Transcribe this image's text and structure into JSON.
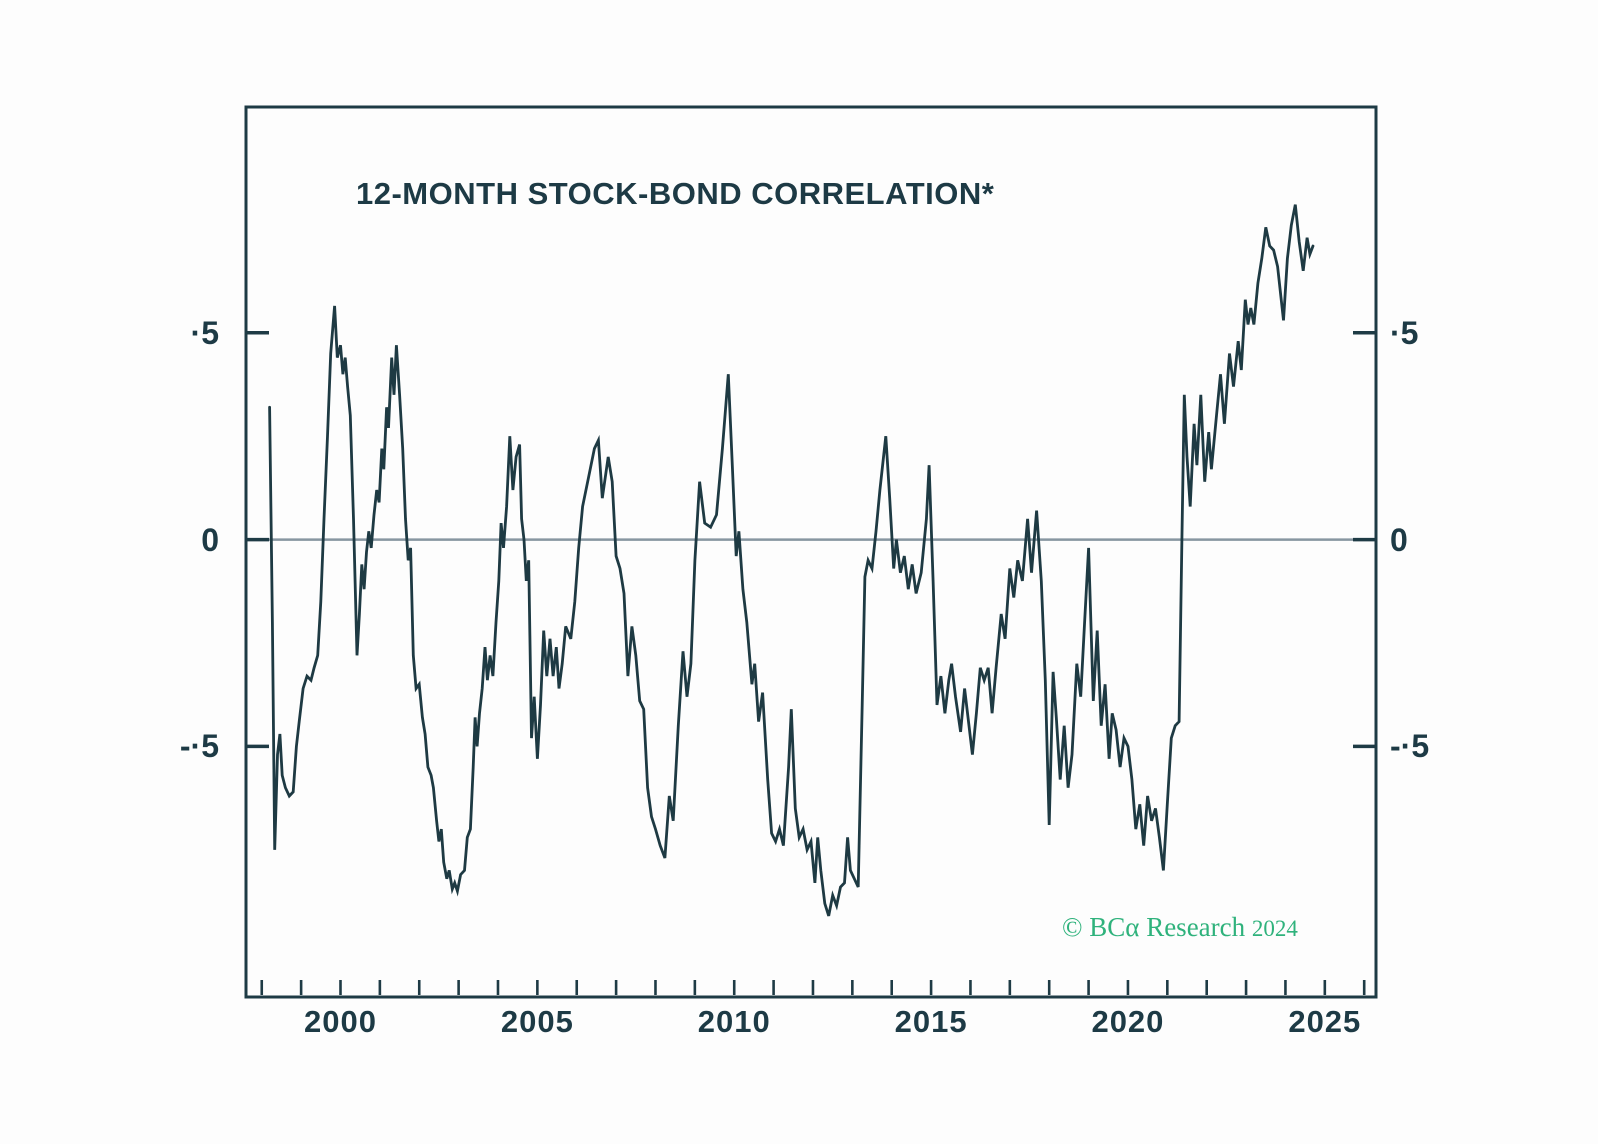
{
  "page": {
    "background": "#fdfdfd"
  },
  "colors": {
    "frame": "#1e3b45",
    "text": "#1d3a45",
    "line": "#1e3a43",
    "zero_line": "#8796a1",
    "watermark": "#2fb27c",
    "background": "#fdfdfd"
  },
  "watermark": {
    "symbol": "©",
    "brand": "BCα",
    "name": "Research",
    "year": "2024"
  },
  "chart_data": {
    "type": "line",
    "title": "12-MONTH STOCK-BOND CORRELATION*",
    "xlabel": "",
    "ylabel": "",
    "legend": "none",
    "grid": "zero-line-only",
    "x_axis": {
      "min": 1997.6,
      "max": 2026.3,
      "minor_tick_interval": 1,
      "minor_tick_start": 1998,
      "minor_tick_end": 2026,
      "labels": [
        {
          "year": 2000,
          "text": "2000"
        },
        {
          "year": 2005,
          "text": "2005"
        },
        {
          "year": 2010,
          "text": "2010"
        },
        {
          "year": 2015,
          "text": "2015"
        },
        {
          "year": 2020,
          "text": "2020"
        },
        {
          "year": 2025,
          "text": "2025"
        }
      ]
    },
    "y_axis": {
      "min": -1.106,
      "max": 1.046,
      "ticks": [
        {
          "value": 0.5,
          "label": "·5"
        },
        {
          "value": 0,
          "label": "0"
        },
        {
          "value": -0.5,
          "label": "-·5"
        }
      ],
      "zero_line_value": 0
    },
    "series": [
      {
        "name": "12-month stock-bond correlation",
        "color": "#1e3a43",
        "stroke_width": 2.8,
        "points": [
          [
            1998.2,
            0.32
          ],
          [
            1998.27,
            -0.2
          ],
          [
            1998.33,
            -0.75
          ],
          [
            1998.4,
            -0.52
          ],
          [
            1998.46,
            -0.47
          ],
          [
            1998.52,
            -0.57
          ],
          [
            1998.6,
            -0.6
          ],
          [
            1998.7,
            -0.62
          ],
          [
            1998.8,
            -0.61
          ],
          [
            1998.88,
            -0.5
          ],
          [
            1998.95,
            -0.44
          ],
          [
            1999.05,
            -0.36
          ],
          [
            1999.15,
            -0.33
          ],
          [
            1999.25,
            -0.34
          ],
          [
            1999.33,
            -0.31
          ],
          [
            1999.42,
            -0.28
          ],
          [
            1999.5,
            -0.15
          ],
          [
            1999.58,
            0.05
          ],
          [
            1999.67,
            0.25
          ],
          [
            1999.75,
            0.45
          ],
          [
            1999.85,
            0.565
          ],
          [
            1999.92,
            0.44
          ],
          [
            2000.0,
            0.47
          ],
          [
            2000.06,
            0.4
          ],
          [
            2000.12,
            0.44
          ],
          [
            2000.18,
            0.37
          ],
          [
            2000.25,
            0.3
          ],
          [
            2000.33,
            0.05
          ],
          [
            2000.42,
            -0.28
          ],
          [
            2000.48,
            -0.18
          ],
          [
            2000.54,
            -0.06
          ],
          [
            2000.6,
            -0.12
          ],
          [
            2000.66,
            -0.03
          ],
          [
            2000.72,
            0.02
          ],
          [
            2000.78,
            -0.02
          ],
          [
            2000.85,
            0.06
          ],
          [
            2000.92,
            0.12
          ],
          [
            2000.98,
            0.09
          ],
          [
            2001.05,
            0.22
          ],
          [
            2001.1,
            0.17
          ],
          [
            2001.17,
            0.32
          ],
          [
            2001.22,
            0.27
          ],
          [
            2001.3,
            0.44
          ],
          [
            2001.36,
            0.35
          ],
          [
            2001.42,
            0.47
          ],
          [
            2001.5,
            0.35
          ],
          [
            2001.58,
            0.22
          ],
          [
            2001.65,
            0.05
          ],
          [
            2001.72,
            -0.05
          ],
          [
            2001.78,
            -0.02
          ],
          [
            2001.85,
            -0.28
          ],
          [
            2001.92,
            -0.36
          ],
          [
            2002.0,
            -0.35
          ],
          [
            2002.08,
            -0.43
          ],
          [
            2002.15,
            -0.47
          ],
          [
            2002.22,
            -0.55
          ],
          [
            2002.3,
            -0.57
          ],
          [
            2002.36,
            -0.6
          ],
          [
            2002.44,
            -0.68
          ],
          [
            2002.5,
            -0.73
          ],
          [
            2002.56,
            -0.7
          ],
          [
            2002.62,
            -0.78
          ],
          [
            2002.7,
            -0.82
          ],
          [
            2002.76,
            -0.8
          ],
          [
            2002.84,
            -0.845
          ],
          [
            2002.9,
            -0.83
          ],
          [
            2002.97,
            -0.85
          ],
          [
            2003.05,
            -0.81
          ],
          [
            2003.15,
            -0.8
          ],
          [
            2003.22,
            -0.72
          ],
          [
            2003.3,
            -0.7
          ],
          [
            2003.37,
            -0.55
          ],
          [
            2003.42,
            -0.43
          ],
          [
            2003.47,
            -0.5
          ],
          [
            2003.53,
            -0.42
          ],
          [
            2003.6,
            -0.36
          ],
          [
            2003.67,
            -0.26
          ],
          [
            2003.73,
            -0.34
          ],
          [
            2003.8,
            -0.28
          ],
          [
            2003.87,
            -0.33
          ],
          [
            2003.95,
            -0.2
          ],
          [
            2004.02,
            -0.1
          ],
          [
            2004.08,
            0.04
          ],
          [
            2004.14,
            -0.02
          ],
          [
            2004.22,
            0.08
          ],
          [
            2004.3,
            0.25
          ],
          [
            2004.38,
            0.12
          ],
          [
            2004.46,
            0.2
          ],
          [
            2004.55,
            0.23
          ],
          [
            2004.6,
            0.05
          ],
          [
            2004.66,
            0.0
          ],
          [
            2004.72,
            -0.1
          ],
          [
            2004.78,
            -0.05
          ],
          [
            2004.85,
            -0.48
          ],
          [
            2004.92,
            -0.38
          ],
          [
            2005.0,
            -0.53
          ],
          [
            2005.08,
            -0.4
          ],
          [
            2005.16,
            -0.22
          ],
          [
            2005.24,
            -0.33
          ],
          [
            2005.32,
            -0.24
          ],
          [
            2005.4,
            -0.33
          ],
          [
            2005.48,
            -0.26
          ],
          [
            2005.55,
            -0.36
          ],
          [
            2005.63,
            -0.3
          ],
          [
            2005.72,
            -0.21
          ],
          [
            2005.85,
            -0.24
          ],
          [
            2005.95,
            -0.15
          ],
          [
            2006.05,
            -0.02
          ],
          [
            2006.15,
            0.08
          ],
          [
            2006.3,
            0.15
          ],
          [
            2006.45,
            0.22
          ],
          [
            2006.55,
            0.24
          ],
          [
            2006.65,
            0.1
          ],
          [
            2006.8,
            0.2
          ],
          [
            2006.9,
            0.14
          ],
          [
            2007.0,
            -0.04
          ],
          [
            2007.1,
            -0.07
          ],
          [
            2007.2,
            -0.13
          ],
          [
            2007.3,
            -0.33
          ],
          [
            2007.4,
            -0.21
          ],
          [
            2007.5,
            -0.28
          ],
          [
            2007.6,
            -0.39
          ],
          [
            2007.7,
            -0.41
          ],
          [
            2007.8,
            -0.6
          ],
          [
            2007.9,
            -0.67
          ],
          [
            2008.0,
            -0.7
          ],
          [
            2008.12,
            -0.74
          ],
          [
            2008.24,
            -0.77
          ],
          [
            2008.35,
            -0.62
          ],
          [
            2008.45,
            -0.68
          ],
          [
            2008.58,
            -0.45
          ],
          [
            2008.7,
            -0.27
          ],
          [
            2008.8,
            -0.38
          ],
          [
            2008.9,
            -0.3
          ],
          [
            2009.0,
            -0.05
          ],
          [
            2009.12,
            0.14
          ],
          [
            2009.25,
            0.04
          ],
          [
            2009.4,
            0.03
          ],
          [
            2009.55,
            0.06
          ],
          [
            2009.7,
            0.22
          ],
          [
            2009.85,
            0.4
          ],
          [
            2009.95,
            0.18
          ],
          [
            2010.05,
            -0.04
          ],
          [
            2010.12,
            0.02
          ],
          [
            2010.22,
            -0.12
          ],
          [
            2010.32,
            -0.2
          ],
          [
            2010.45,
            -0.35
          ],
          [
            2010.52,
            -0.3
          ],
          [
            2010.62,
            -0.44
          ],
          [
            2010.72,
            -0.37
          ],
          [
            2010.85,
            -0.58
          ],
          [
            2010.95,
            -0.71
          ],
          [
            2011.05,
            -0.73
          ],
          [
            2011.15,
            -0.7
          ],
          [
            2011.25,
            -0.74
          ],
          [
            2011.38,
            -0.55
          ],
          [
            2011.45,
            -0.41
          ],
          [
            2011.55,
            -0.65
          ],
          [
            2011.65,
            -0.72
          ],
          [
            2011.75,
            -0.7
          ],
          [
            2011.85,
            -0.75
          ],
          [
            2011.95,
            -0.73
          ],
          [
            2012.05,
            -0.83
          ],
          [
            2012.12,
            -0.72
          ],
          [
            2012.2,
            -0.8
          ],
          [
            2012.3,
            -0.88
          ],
          [
            2012.4,
            -0.91
          ],
          [
            2012.5,
            -0.86
          ],
          [
            2012.6,
            -0.885
          ],
          [
            2012.7,
            -0.84
          ],
          [
            2012.8,
            -0.83
          ],
          [
            2012.88,
            -0.72
          ],
          [
            2012.95,
            -0.8
          ],
          [
            2013.05,
            -0.82
          ],
          [
            2013.15,
            -0.84
          ],
          [
            2013.25,
            -0.4
          ],
          [
            2013.32,
            -0.09
          ],
          [
            2013.4,
            -0.05
          ],
          [
            2013.5,
            -0.07
          ],
          [
            2013.6,
            0.02
          ],
          [
            2013.7,
            0.12
          ],
          [
            2013.85,
            0.25
          ],
          [
            2013.95,
            0.1
          ],
          [
            2014.05,
            -0.07
          ],
          [
            2014.12,
            0.0
          ],
          [
            2014.22,
            -0.08
          ],
          [
            2014.32,
            -0.04
          ],
          [
            2014.42,
            -0.12
          ],
          [
            2014.52,
            -0.06
          ],
          [
            2014.62,
            -0.13
          ],
          [
            2014.75,
            -0.08
          ],
          [
            2014.88,
            0.05
          ],
          [
            2014.95,
            0.18
          ],
          [
            2015.05,
            -0.1
          ],
          [
            2015.15,
            -0.4
          ],
          [
            2015.25,
            -0.33
          ],
          [
            2015.35,
            -0.42
          ],
          [
            2015.45,
            -0.34
          ],
          [
            2015.52,
            -0.3
          ],
          [
            2015.62,
            -0.38
          ],
          [
            2015.75,
            -0.465
          ],
          [
            2015.85,
            -0.36
          ],
          [
            2015.95,
            -0.44
          ],
          [
            2016.05,
            -0.52
          ],
          [
            2016.15,
            -0.42
          ],
          [
            2016.25,
            -0.31
          ],
          [
            2016.35,
            -0.34
          ],
          [
            2016.45,
            -0.31
          ],
          [
            2016.55,
            -0.42
          ],
          [
            2016.65,
            -0.31
          ],
          [
            2016.78,
            -0.18
          ],
          [
            2016.88,
            -0.24
          ],
          [
            2017.0,
            -0.07
          ],
          [
            2017.1,
            -0.14
          ],
          [
            2017.2,
            -0.05
          ],
          [
            2017.32,
            -0.1
          ],
          [
            2017.45,
            0.05
          ],
          [
            2017.55,
            -0.08
          ],
          [
            2017.68,
            0.07
          ],
          [
            2017.8,
            -0.1
          ],
          [
            2017.9,
            -0.34
          ],
          [
            2018.0,
            -0.69
          ],
          [
            2018.1,
            -0.32
          ],
          [
            2018.18,
            -0.43
          ],
          [
            2018.28,
            -0.58
          ],
          [
            2018.38,
            -0.45
          ],
          [
            2018.48,
            -0.6
          ],
          [
            2018.58,
            -0.52
          ],
          [
            2018.7,
            -0.3
          ],
          [
            2018.8,
            -0.38
          ],
          [
            2018.9,
            -0.2
          ],
          [
            2019.0,
            -0.02
          ],
          [
            2019.12,
            -0.39
          ],
          [
            2019.22,
            -0.22
          ],
          [
            2019.32,
            -0.45
          ],
          [
            2019.42,
            -0.35
          ],
          [
            2019.52,
            -0.53
          ],
          [
            2019.6,
            -0.42
          ],
          [
            2019.7,
            -0.46
          ],
          [
            2019.8,
            -0.55
          ],
          [
            2019.9,
            -0.48
          ],
          [
            2020.0,
            -0.5
          ],
          [
            2020.1,
            -0.58
          ],
          [
            2020.2,
            -0.7
          ],
          [
            2020.3,
            -0.64
          ],
          [
            2020.4,
            -0.74
          ],
          [
            2020.5,
            -0.62
          ],
          [
            2020.6,
            -0.68
          ],
          [
            2020.7,
            -0.65
          ],
          [
            2020.8,
            -0.72
          ],
          [
            2020.9,
            -0.8
          ],
          [
            2021.0,
            -0.64
          ],
          [
            2021.1,
            -0.48
          ],
          [
            2021.2,
            -0.45
          ],
          [
            2021.3,
            -0.44
          ],
          [
            2021.37,
            0.0
          ],
          [
            2021.43,
            0.35
          ],
          [
            2021.5,
            0.2
          ],
          [
            2021.58,
            0.08
          ],
          [
            2021.68,
            0.28
          ],
          [
            2021.75,
            0.18
          ],
          [
            2021.85,
            0.35
          ],
          [
            2021.95,
            0.14
          ],
          [
            2022.05,
            0.26
          ],
          [
            2022.12,
            0.17
          ],
          [
            2022.25,
            0.3
          ],
          [
            2022.35,
            0.4
          ],
          [
            2022.45,
            0.28
          ],
          [
            2022.58,
            0.45
          ],
          [
            2022.68,
            0.37
          ],
          [
            2022.8,
            0.48
          ],
          [
            2022.88,
            0.41
          ],
          [
            2022.98,
            0.58
          ],
          [
            2023.05,
            0.52
          ],
          [
            2023.12,
            0.56
          ],
          [
            2023.2,
            0.52
          ],
          [
            2023.3,
            0.62
          ],
          [
            2023.4,
            0.68
          ],
          [
            2023.5,
            0.755
          ],
          [
            2023.6,
            0.71
          ],
          [
            2023.7,
            0.7
          ],
          [
            2023.8,
            0.66
          ],
          [
            2023.95,
            0.53
          ],
          [
            2024.05,
            0.68
          ],
          [
            2024.15,
            0.76
          ],
          [
            2024.25,
            0.81
          ],
          [
            2024.35,
            0.72
          ],
          [
            2024.45,
            0.65
          ],
          [
            2024.55,
            0.73
          ],
          [
            2024.62,
            0.69
          ],
          [
            2024.7,
            0.71
          ]
        ]
      }
    ]
  }
}
